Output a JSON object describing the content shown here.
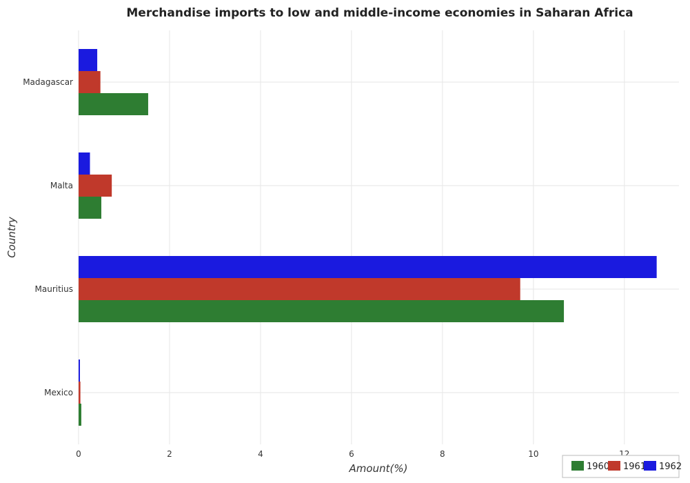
{
  "chart_data": {
    "type": "bar",
    "orientation": "horizontal",
    "title": "Merchandise imports to low and middle-income economies in Saharan Africa",
    "xlabel": "Amount(%)",
    "ylabel": "Country",
    "categories": [
      "Madagascar",
      "Malta",
      "Mauritius",
      "Mexico"
    ],
    "series": [
      {
        "name": "1960",
        "color": "#2e7d32",
        "values": [
          1.53,
          0.5,
          10.67,
          0.06
        ]
      },
      {
        "name": "1961",
        "color": "#c0392b",
        "values": [
          0.48,
          0.73,
          9.71,
          0.04
        ]
      },
      {
        "name": "1962",
        "color": "#1a1adf",
        "values": [
          0.41,
          0.25,
          12.71,
          0.03
        ]
      }
    ],
    "xlim": [
      0,
      13.2
    ],
    "xticks": [
      0,
      2,
      4,
      6,
      8,
      10,
      12
    ],
    "xtick_labels": [
      "0",
      "2",
      "4",
      "6",
      "8",
      "10",
      "12"
    ],
    "grid": true,
    "legend_position": "bottom-right"
  }
}
